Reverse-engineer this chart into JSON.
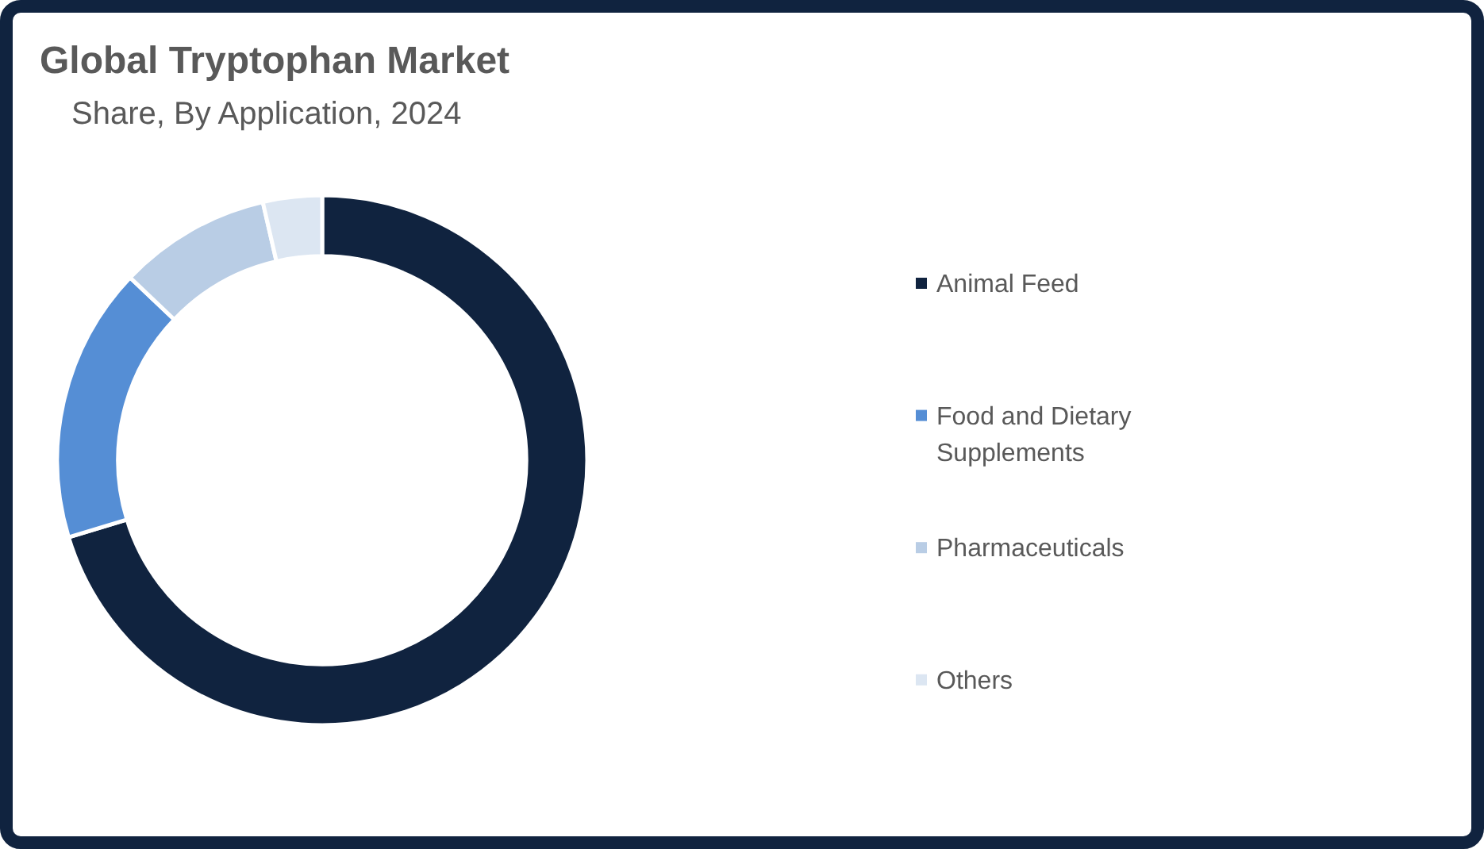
{
  "chart_data": {
    "type": "donut",
    "title": "Global Tryptophan Market",
    "subtitle": "Share, By Application, 2024",
    "categories": [
      "Animal Feed",
      "Food and Dietary Supplements",
      "Pharmaceuticals",
      "Others"
    ],
    "values": [
      70.3,
      16.8,
      9.3,
      3.6
    ],
    "colors": [
      "#10233f",
      "#558ed5",
      "#b9cde5",
      "#dce6f2"
    ],
    "legend": "right"
  }
}
